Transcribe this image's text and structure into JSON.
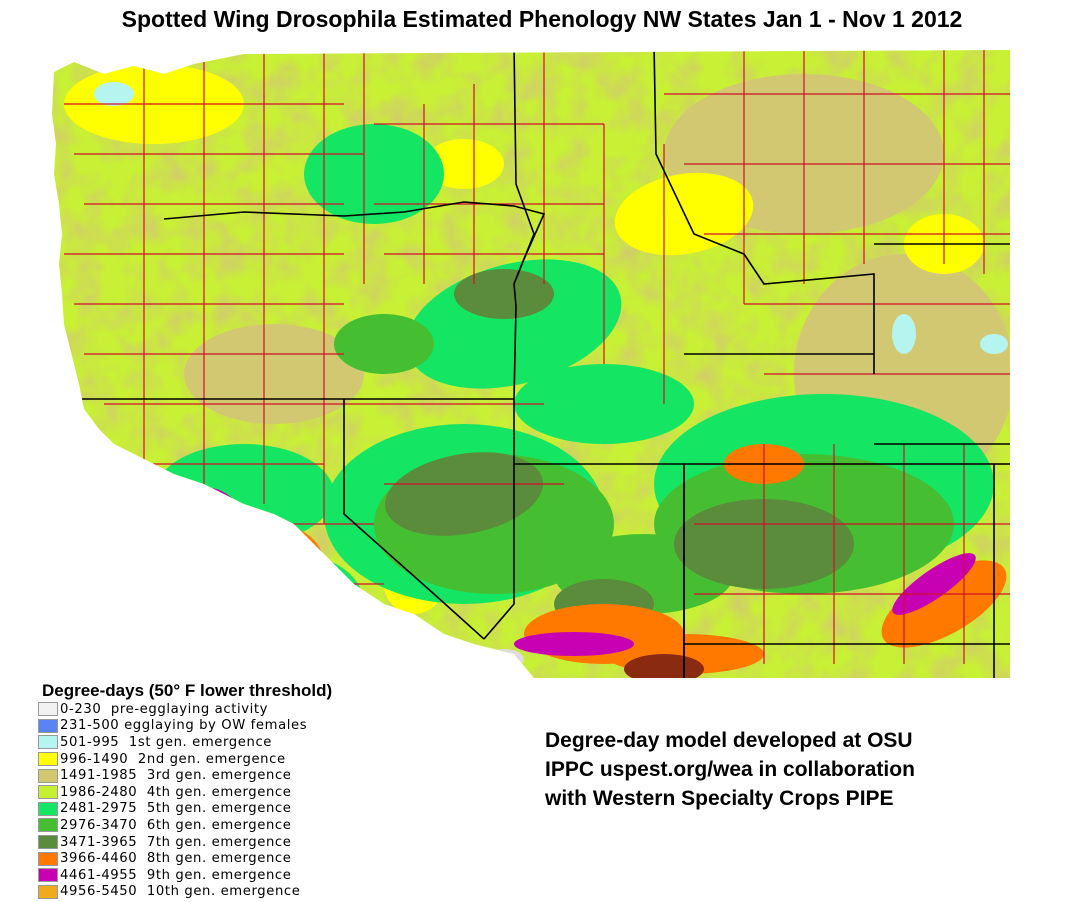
{
  "title": "Spotted Wing Drosophila Estimated Phenology NW States Jan 1 - Nov 1 2012",
  "legend": {
    "title": "Degree-days (50° F lower threshold)",
    "items": [
      {
        "range": "0-230",
        "label": "pre-egglaying activity",
        "color": "#f2f2f2"
      },
      {
        "range": "231-500",
        "label": "egglaying by OW females",
        "color": "#5a84f5"
      },
      {
        "range": "501-995",
        "label": "1st gen. emergence",
        "color": "#b5f5f0"
      },
      {
        "range": "996-1490",
        "label": "2nd gen. emergence",
        "color": "#ffff00"
      },
      {
        "range": "1491-1985",
        "label": "3rd gen. emergence",
        "color": "#d2c872"
      },
      {
        "range": "1986-2480",
        "label": "4th gen. emergence",
        "color": "#c8f034"
      },
      {
        "range": "2481-2975",
        "label": "5th gen. emergence",
        "color": "#14e664"
      },
      {
        "range": "2976-3470",
        "label": "6th gen. emergence",
        "color": "#46be32"
      },
      {
        "range": "3471-3965",
        "label": "7th gen. emergence",
        "color": "#5a8c3c"
      },
      {
        "range": "3966-4460",
        "label": "8th gen. emergence",
        "color": "#ff7800"
      },
      {
        "range": "4461-4955",
        "label": "9th gen. emergence",
        "color": "#c800b4"
      },
      {
        "range": "4956-5450",
        "label": "10th gen. emergence",
        "color": "#f0aa1e"
      }
    ]
  },
  "credit": {
    "lines": [
      "Degree-day model developed at OSU",
      "IPPC uspest.org/wea in collaboration",
      "with Western Specialty Crops PIPE"
    ]
  },
  "map": {
    "colors": {
      "state_border": "#000000",
      "county_border": "#d0102a",
      "ocean": "#ffffff"
    }
  }
}
